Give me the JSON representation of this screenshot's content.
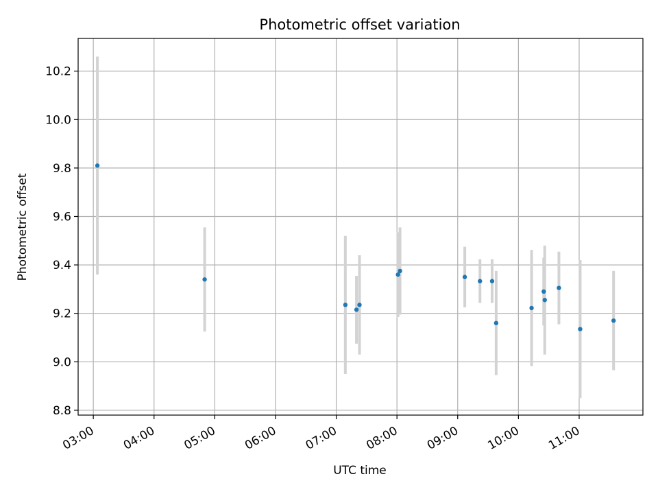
{
  "chart_data": {
    "type": "scatter",
    "title": "Photometric offset variation",
    "xlabel": "UTC time",
    "ylabel": "Photometric offset",
    "x_axis_kind": "time",
    "xlim": [
      "02:45",
      "12:03"
    ],
    "ylim": [
      8.78,
      10.335
    ],
    "grid": true,
    "x_ticks": [
      "03:00",
      "04:00",
      "05:00",
      "06:00",
      "07:00",
      "08:00",
      "09:00",
      "10:00",
      "11:00"
    ],
    "y_ticks": [
      8.8,
      9.0,
      9.2,
      9.4,
      9.6,
      9.8,
      10.0,
      10.2
    ],
    "y_tick_labels": [
      "8.8",
      "9.0",
      "9.2",
      "9.4",
      "9.6",
      "9.8",
      "10.0",
      "10.2"
    ],
    "colors": {
      "point": "#1f77b4",
      "errorbar": "#d3d3d3",
      "grid": "#b0b0b0"
    },
    "points": [
      {
        "x": "03:04",
        "y": 9.81,
        "yerr": 0.45
      },
      {
        "x": "04:50",
        "y": 9.34,
        "yerr": 0.215
      },
      {
        "x": "07:09",
        "y": 9.235,
        "yerr": 0.285
      },
      {
        "x": "07:20",
        "y": 9.215,
        "yerr": 0.14
      },
      {
        "x": "07:23",
        "y": 9.235,
        "yerr": 0.205
      },
      {
        "x": "08:01",
        "y": 9.36,
        "yerr": 0.175
      },
      {
        "x": "08:03",
        "y": 9.375,
        "yerr": 0.18
      },
      {
        "x": "09:07",
        "y": 9.35,
        "yerr": 0.125
      },
      {
        "x": "09:22",
        "y": 9.333,
        "yerr": 0.09
      },
      {
        "x": "09:34",
        "y": 9.333,
        "yerr": 0.09
      },
      {
        "x": "09:38",
        "y": 9.16,
        "yerr": 0.215
      },
      {
        "x": "10:13",
        "y": 9.222,
        "yerr": 0.24
      },
      {
        "x": "10:25",
        "y": 9.29,
        "yerr": 0.14
      },
      {
        "x": "10:26",
        "y": 9.255,
        "yerr": 0.225
      },
      {
        "x": "10:40",
        "y": 9.305,
        "yerr": 0.15
      },
      {
        "x": "11:01",
        "y": 9.135,
        "yerr": 0.285
      },
      {
        "x": "11:34",
        "y": 9.17,
        "yerr": 0.205
      }
    ]
  }
}
